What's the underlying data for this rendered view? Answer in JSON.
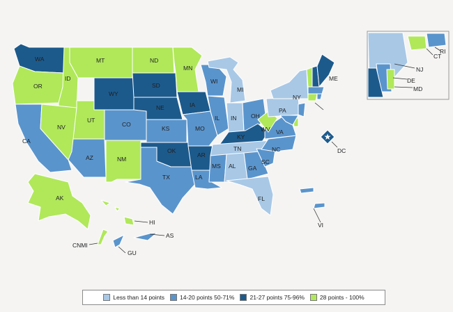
{
  "colors": {
    "cat1": "#a8c8e6",
    "cat2": "#5a94cc",
    "cat3": "#1d5a8c",
    "cat4": "#b0e85a"
  },
  "legend": [
    {
      "key": "cat1",
      "label": "Less than 14 points"
    },
    {
      "key": "cat2",
      "label": "14-20 points 50-71%"
    },
    {
      "key": "cat3",
      "label": "21-27 points 75-96%"
    },
    {
      "key": "cat4",
      "label": "28 points - 100%"
    }
  ],
  "states": {
    "WA": "cat3",
    "OR": "cat4",
    "CA": "cat2",
    "ID": "cat4",
    "NV": "cat4",
    "MT": "cat4",
    "WY": "cat3",
    "UT": "cat4",
    "AZ": "cat2",
    "CO": "cat2",
    "NM": "cat4",
    "ND": "cat4",
    "SD": "cat3",
    "NE": "cat3",
    "KS": "cat2",
    "OK": "cat3",
    "TX": "cat2",
    "MN": "cat4",
    "IA": "cat3",
    "MO": "cat2",
    "AR": "cat3",
    "LA": "cat2",
    "WI": "cat2",
    "IL": "cat2",
    "MI": "cat1",
    "IN": "cat1",
    "OH": "cat2",
    "KY": "cat3",
    "TN": "cat1",
    "MS": "cat2",
    "AL": "cat1",
    "GA": "cat2",
    "FL": "cat1",
    "SC": "cat2",
    "NC": "cat2",
    "VA": "cat2",
    "WV": "cat4",
    "PA": "cat1",
    "NY": "cat1",
    "VT": "cat4",
    "NH": "cat3",
    "ME": "cat3",
    "MA": "cat2",
    "RI": "cat2",
    "CT": "cat4",
    "NJ": "cat2",
    "DE": "cat4",
    "MD": "cat2",
    "DC": "cat3",
    "AK": "cat4",
    "HI": "cat4",
    "AS": "cat2",
    "GU": "cat2",
    "CNMI": "cat4",
    "VI": "cat2"
  },
  "labels": {
    "WA": "WA",
    "OR": "OR",
    "CA": "CA",
    "ID": "ID",
    "NV": "NV",
    "MT": "MT",
    "WY": "WY",
    "UT": "UT",
    "AZ": "AZ",
    "CO": "CO",
    "NM": "NM",
    "ND": "ND",
    "SD": "SD",
    "NE": "NE",
    "KS": "KS",
    "OK": "OK",
    "TX": "TX",
    "MN": "MN",
    "IA": "IA",
    "MO": "MO",
    "AR": "AR",
    "LA": "LA",
    "WI": "WI",
    "IL": "IL",
    "MI": "MI",
    "IN": "IN",
    "OH": "OH",
    "KY": "KY",
    "TN": "TN",
    "MS": "MS",
    "AL": "AL",
    "GA": "GA",
    "FL": "FL",
    "SC": "SC",
    "NC": "NC",
    "VA": "VA",
    "WV": "WV",
    "PA": "PA",
    "NY": "NY",
    "ME": "ME",
    "NJ": "NJ",
    "DE": "DE",
    "MD": "MD",
    "RI": "RI",
    "CT": "CT",
    "DC": "DC",
    "AK": "AK",
    "HI": "HI",
    "AS": "AS",
    "GU": "GU",
    "CNMI": "CNMI",
    "VI": "VI"
  }
}
